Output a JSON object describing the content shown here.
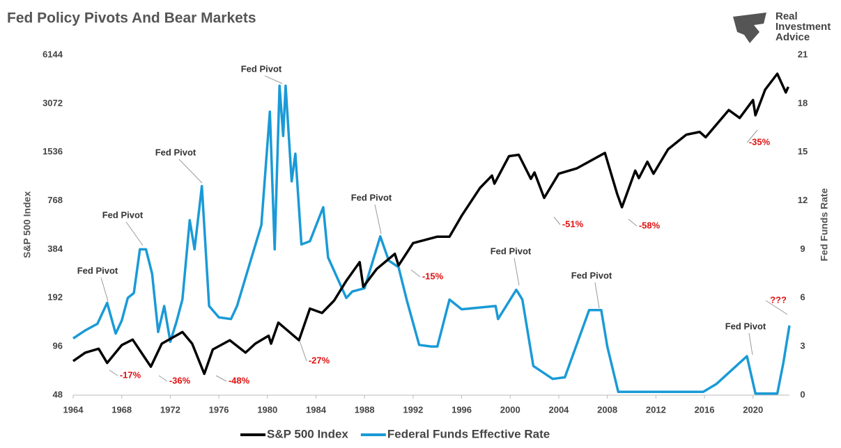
{
  "chart_data": {
    "type": "line",
    "title": "Fed Policy Pivots And Bear Markets",
    "brand": "Real Investment Advice",
    "ylabel": "S&P 500 Index",
    "y2label": "Fed Funds Rate",
    "xlim": [
      1964,
      2023
    ],
    "xticks": [
      1964,
      1968,
      1972,
      1976,
      1980,
      1984,
      1988,
      1992,
      1996,
      2000,
      2004,
      2008,
      2012,
      2016,
      2020
    ],
    "ylim": [
      48,
      6144
    ],
    "yticks": [
      48,
      96,
      192,
      384,
      768,
      1536,
      3072,
      6144
    ],
    "ylog": true,
    "y2lim": [
      0,
      21
    ],
    "y2ticks": [
      0,
      3,
      6,
      9,
      12,
      15,
      18,
      21
    ],
    "grid": false,
    "legend": "bottom",
    "series": [
      {
        "name": "S&P 500 Index",
        "color": "#000000",
        "x": [
          1964,
          1965,
          1966.1,
          1966.8,
          1968,
          1968.9,
          1970.4,
          1971.3,
          1973.0,
          1973.8,
          1974.8,
          1975.5,
          1976.9,
          1978.2,
          1979,
          1980.1,
          1980.3,
          1980.9,
          1982.6,
          1983.5,
          1984.5,
          1985.5,
          1986.5,
          1987.6,
          1987.9,
          1989,
          1990.5,
          1990.8,
          1992,
          1994,
          1995.0,
          1996,
          1997.5,
          1998.5,
          1998.7,
          1999.9,
          2000.7,
          2001.7,
          2002.0,
          2002.8,
          2004,
          2005.5,
          2007.8,
          2008.8,
          2009.2,
          2010.3,
          2010.6,
          2011.3,
          2011.8,
          2013,
          2014.5,
          2015.6,
          2016.1,
          2018,
          2018.9,
          2020.0,
          2020.2,
          2021.0,
          2022.0,
          2022.7,
          2022.9
        ],
        "values": [
          78,
          88,
          93,
          76,
          98,
          106,
          72,
          100,
          118,
          100,
          65,
          92,
          105,
          88,
          100,
          112,
          100,
          135,
          105,
          165,
          155,
          185,
          245,
          320,
          225,
          290,
          360,
          305,
          420,
          460,
          460,
          620,
          920,
          1100,
          980,
          1450,
          1480,
          1050,
          1150,
          800,
          1130,
          1220,
          1520,
          850,
          700,
          1180,
          1060,
          1340,
          1130,
          1600,
          1970,
          2050,
          1900,
          2800,
          2500,
          3230,
          2600,
          3750,
          4700,
          3600,
          3900
        ]
      },
      {
        "name": "Federal Funds Effective Rate",
        "color": "#1a9ad6",
        "axis": "y2",
        "x": [
          1964,
          1965,
          1966.0,
          1966.8,
          1967.5,
          1968.0,
          1968.5,
          1969.0,
          1969.5,
          1970.0,
          1970.5,
          1971.0,
          1971.5,
          1972.0,
          1972.5,
          1973.0,
          1973.6,
          1974.0,
          1974.6,
          1975.2,
          1976.0,
          1977.0,
          1977.5,
          1978.5,
          1979.5,
          1980.2,
          1980.6,
          1981.0,
          1981.3,
          1981.5,
          1982.0,
          1982.3,
          1982.8,
          1983.5,
          1984.6,
          1985.0,
          1986.5,
          1987.0,
          1988.0,
          1989.3,
          1990.0,
          1990.8,
          1991.5,
          1992.5,
          1993.5,
          1994.0,
          1995.0,
          1996.0,
          1998.8,
          1999.0,
          2000.5,
          2001.0,
          2001.9,
          2003.5,
          2004.5,
          2006.5,
          2007.5,
          2008.0,
          2008.9,
          2015.9,
          2017.0,
          2019.5,
          2020.2,
          2022.0,
          2022.5,
          2023.0
        ],
        "values": [
          3.5,
          4.0,
          4.4,
          5.7,
          3.8,
          4.6,
          6.0,
          6.3,
          9.0,
          9.0,
          7.5,
          3.9,
          5.5,
          3.3,
          4.5,
          5.9,
          10.8,
          9.0,
          12.9,
          5.5,
          4.8,
          4.7,
          5.5,
          8.0,
          10.5,
          17.5,
          9.0,
          19.1,
          16,
          19.1,
          13.2,
          14.9,
          9.3,
          9.5,
          11.6,
          8.5,
          6.0,
          6.4,
          6.6,
          9.8,
          8.3,
          7.9,
          5.8,
          3.1,
          3.0,
          3.0,
          5.9,
          5.3,
          5.5,
          4.7,
          6.5,
          5.9,
          1.8,
          1.0,
          1.1,
          5.25,
          5.25,
          3.0,
          0.2,
          0.2,
          0.7,
          2.4,
          0.1,
          0.1,
          2.0,
          4.3
        ]
      }
    ],
    "pivot_labels": [
      "Fed Pivot",
      "Fed Pivot",
      "Fed Pivot",
      "Fed Pivot",
      "Fed Pivot",
      "Fed Pivot",
      "Fed Pivot",
      "Fed Pivot"
    ],
    "drawdown_labels": [
      "-17%",
      "-36%",
      "-48%",
      "-27%",
      "-15%",
      "-51%",
      "-58%",
      "-35%",
      "???"
    ]
  }
}
